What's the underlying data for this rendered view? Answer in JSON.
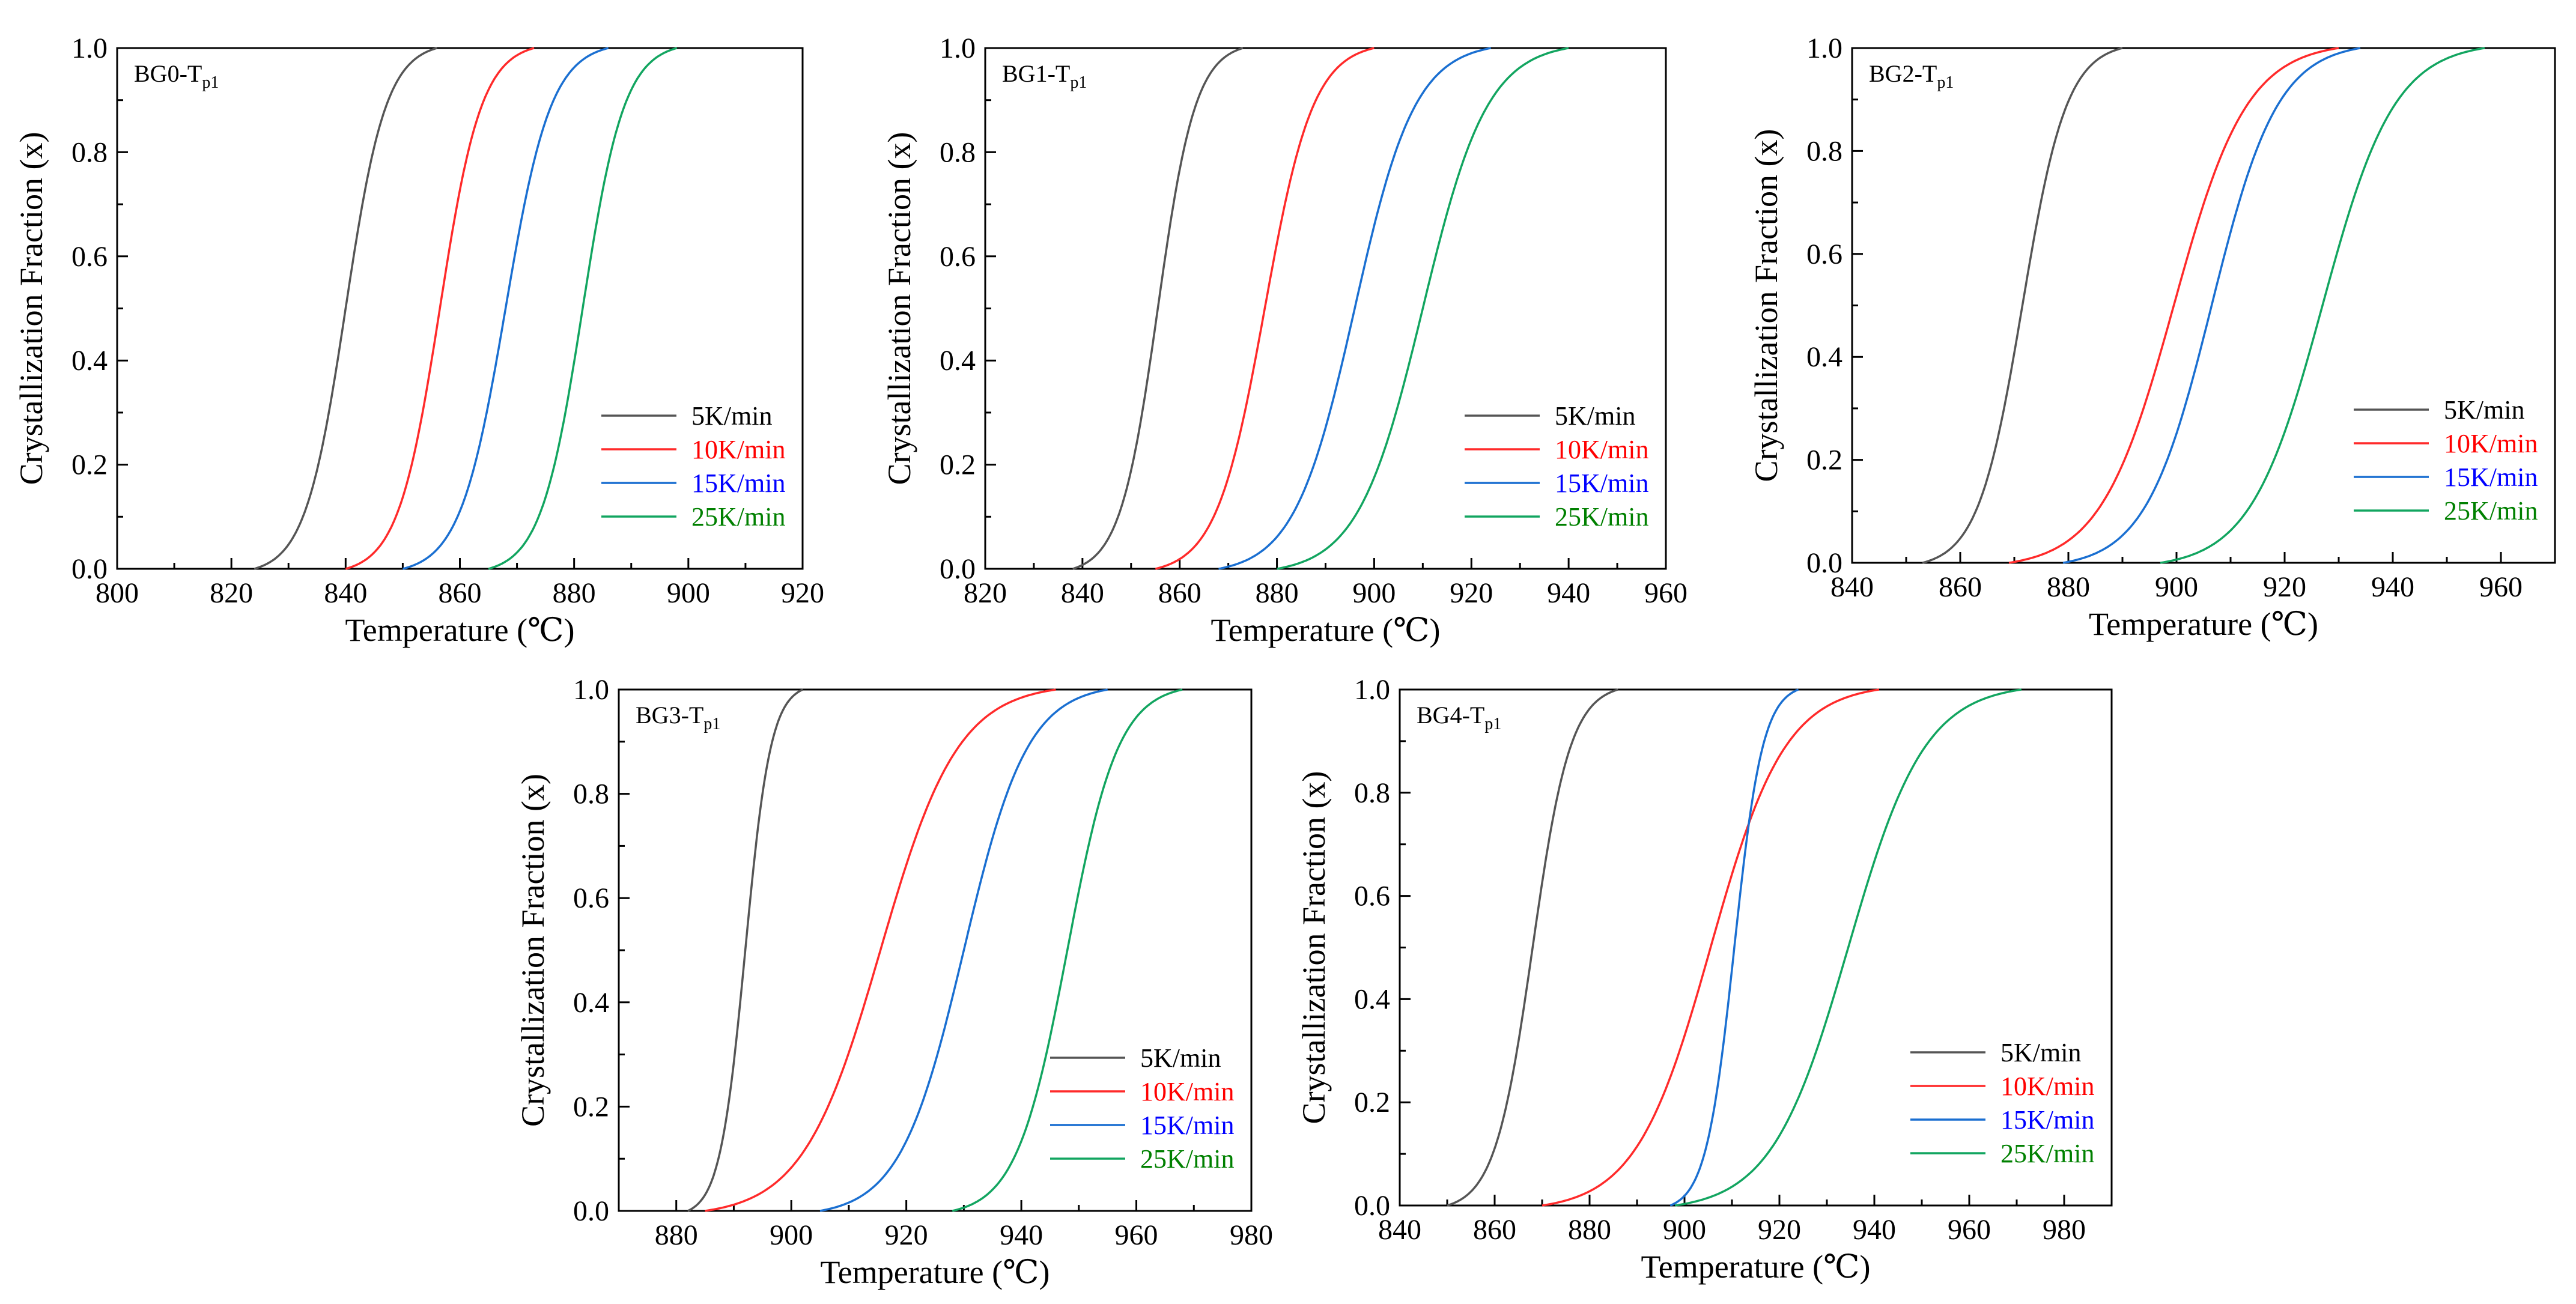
{
  "colors": {
    "5K/min": "#555555",
    "10K/min": "#ff2a2a",
    "15K/min": "#1a6fd1",
    "25K/min": "#12a560",
    "axis": "#000000"
  },
  "legend_text_colors": {
    "5K/min": "#000000",
    "10K/min": "#ff0000",
    "15K/min": "#0000ff",
    "25K/min": "#008000"
  },
  "chart_data": [
    {
      "type": "line",
      "panel_label": "BG0-T",
      "panel_sub": "p1",
      "xlabel": "Temperature (℃)",
      "ylabel": "Crystallization Fraction (x)",
      "xlim": [
        800,
        920
      ],
      "ylim": [
        0,
        1
      ],
      "xticks": [
        800,
        820,
        840,
        860,
        880,
        900,
        920
      ],
      "yticks": [
        0.0,
        0.2,
        0.4,
        0.6,
        0.8,
        1.0
      ],
      "legend_position": "lower-right",
      "series": [
        {
          "name": "5K/min",
          "start": 824,
          "end": 856
        },
        {
          "name": "10K/min",
          "start": 840,
          "end": 873
        },
        {
          "name": "15K/min",
          "start": 850,
          "end": 886
        },
        {
          "name": "25K/min",
          "start": 865,
          "end": 898
        }
      ]
    },
    {
      "type": "line",
      "panel_label": "BG1-T",
      "panel_sub": "p1",
      "xlabel": "Temperature (℃)",
      "ylabel": "Crystallization Fraction (x)",
      "xlim": [
        820,
        960
      ],
      "ylim": [
        0,
        1
      ],
      "xticks": [
        820,
        840,
        860,
        880,
        900,
        920,
        940,
        960
      ],
      "yticks": [
        0.0,
        0.2,
        0.4,
        0.6,
        0.8,
        1.0
      ],
      "legend_position": "lower-right",
      "series": [
        {
          "name": "5K/min",
          "start": 838,
          "end": 873
        },
        {
          "name": "10K/min",
          "start": 855,
          "end": 900
        },
        {
          "name": "15K/min",
          "start": 868,
          "end": 924
        },
        {
          "name": "25K/min",
          "start": 880,
          "end": 940
        }
      ]
    },
    {
      "type": "line",
      "panel_label": "BG2-T",
      "panel_sub": "p1",
      "xlabel": "Temperature (℃)",
      "ylabel": "Crystallization Fraction (x)",
      "xlim": [
        840,
        970
      ],
      "ylim": [
        0,
        1
      ],
      "xticks": [
        840,
        860,
        880,
        900,
        920,
        940,
        960
      ],
      "yticks": [
        0.0,
        0.2,
        0.4,
        0.6,
        0.8,
        1.0
      ],
      "legend_position": "lower-right",
      "series": [
        {
          "name": "5K/min",
          "start": 853,
          "end": 890
        },
        {
          "name": "10K/min",
          "start": 869,
          "end": 930
        },
        {
          "name": "15K/min",
          "start": 879,
          "end": 934
        },
        {
          "name": "25K/min",
          "start": 897,
          "end": 957
        }
      ]
    },
    {
      "type": "line",
      "panel_label": "BG3-T",
      "panel_sub": "p1",
      "xlabel": "Temperature (℃)",
      "ylabel": "Crystallization Fraction (x)",
      "xlim": [
        870,
        980
      ],
      "ylim": [
        0,
        1
      ],
      "xticks": [
        880,
        900,
        920,
        940,
        960,
        980
      ],
      "yticks": [
        0.0,
        0.2,
        0.4,
        0.6,
        0.8,
        1.0
      ],
      "legend_position": "lower-right",
      "series": [
        {
          "name": "5K/min",
          "start": 882,
          "end": 902
        },
        {
          "name": "10K/min",
          "start": 885,
          "end": 946
        },
        {
          "name": "15K/min",
          "start": 905,
          "end": 955
        },
        {
          "name": "25K/min",
          "start": 928,
          "end": 968
        }
      ]
    },
    {
      "type": "line",
      "panel_label": "BG4-T",
      "panel_sub": "p1",
      "xlabel": "Temperature (℃)",
      "ylabel": "Crystallization Fraction (x)",
      "xlim": [
        840,
        990
      ],
      "ylim": [
        0,
        1
      ],
      "xticks": [
        840,
        860,
        880,
        900,
        920,
        940,
        960,
        980
      ],
      "yticks": [
        0.0,
        0.2,
        0.4,
        0.6,
        0.8,
        1.0
      ],
      "legend_position": "lower-right",
      "series": [
        {
          "name": "5K/min",
          "start": 850,
          "end": 886
        },
        {
          "name": "10K/min",
          "start": 870,
          "end": 941
        },
        {
          "name": "15K/min",
          "start": 897,
          "end": 924
        },
        {
          "name": "25K/min",
          "start": 898,
          "end": 971
        }
      ]
    }
  ]
}
